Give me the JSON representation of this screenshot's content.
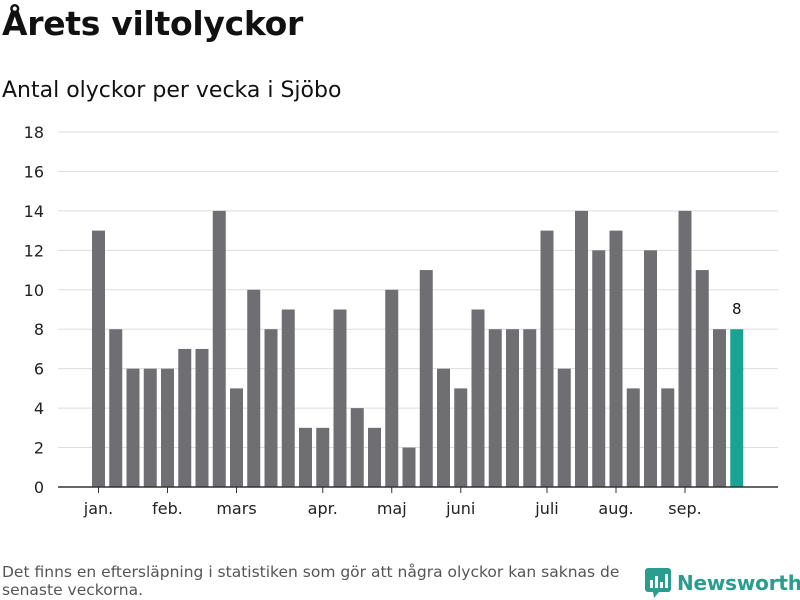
{
  "title": "Årets viltolyckor",
  "subtitle": "Antal olyckor per vecka i Sjöbo",
  "footnote": "Det finns en eftersläpning i statistiken som gör att några olyckor kan saknas de senaste veckorna.",
  "brand": {
    "name": "Newsworthy",
    "icon": "newsworthy-logo-icon",
    "color": "#2a9d8f"
  },
  "chart_data": {
    "type": "bar",
    "title": "Antal olyckor per vecka i Sjöbo",
    "xlabel": "",
    "ylabel": "",
    "ylim": [
      0,
      18
    ],
    "yticks": [
      0,
      2,
      4,
      6,
      8,
      10,
      12,
      14,
      16,
      18
    ],
    "grid": true,
    "x_tick_labels": [
      {
        "label": "jan.",
        "index": 0
      },
      {
        "label": "feb.",
        "index": 4
      },
      {
        "label": "mars",
        "index": 8
      },
      {
        "label": "apr.",
        "index": 13
      },
      {
        "label": "maj",
        "index": 17
      },
      {
        "label": "juni",
        "index": 21
      },
      {
        "label": "juli",
        "index": 26
      },
      {
        "label": "aug.",
        "index": 30
      },
      {
        "label": "sep.",
        "index": 34
      }
    ],
    "values": [
      13,
      8,
      6,
      6,
      6,
      7,
      7,
      14,
      5,
      10,
      8,
      9,
      3,
      3,
      9,
      4,
      3,
      10,
      2,
      11,
      6,
      5,
      9,
      8,
      8,
      8,
      13,
      6,
      14,
      12,
      13,
      5,
      12,
      5,
      14,
      11,
      8,
      8
    ],
    "highlight_index": 37,
    "highlight_label": "8",
    "colors": {
      "bar": "#6f6e73",
      "highlight": "#1aa394",
      "grid": "#dddddd",
      "axis": "#333333"
    }
  }
}
